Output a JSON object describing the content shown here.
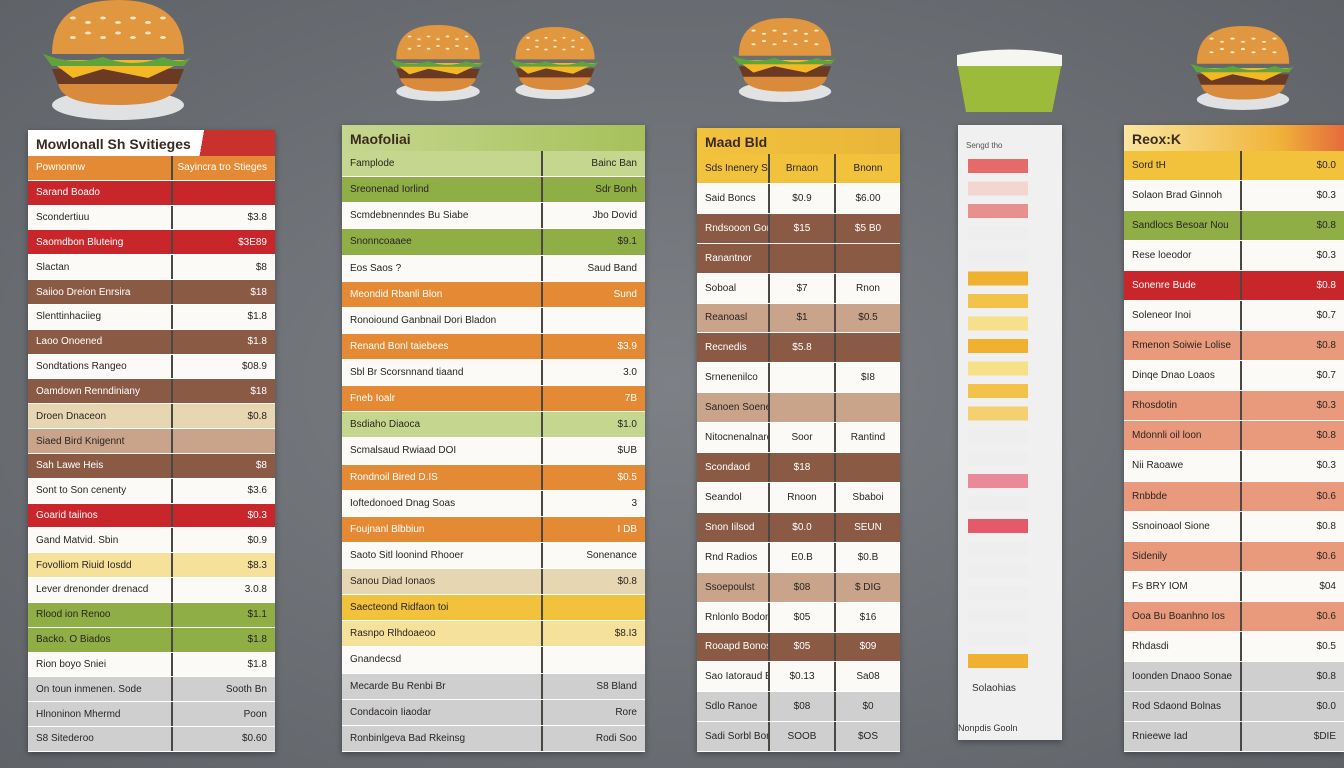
{
  "panels": [
    {
      "title": "Mowlonall Sh Svitieges",
      "rows": [
        [
          "Pownonnw",
          "Sayincra tro Stieges"
        ],
        [
          "Sarand Boado",
          ""
        ],
        [
          "Scondertiuu",
          "$3.8"
        ],
        [
          "Saomdbon Bluteing",
          "$3E89"
        ],
        [
          "Slactan",
          "$8"
        ],
        [
          "Saiioo Dreion Enrsira",
          "$18"
        ],
        [
          "Slenttinhaciieg",
          "$1.8"
        ],
        [
          "Laoo Onoened",
          "$1.8"
        ],
        [
          "Sondtations Rangeo",
          "$08.9"
        ],
        [
          "Oamdown Renndiniany",
          "$18"
        ],
        [
          "Droen Dnaceon",
          "$0.8"
        ],
        [
          "Siaed Bird Knigennt",
          ""
        ],
        [
          "Sah Lawe Heis",
          "$8"
        ],
        [
          "Sont to Son cenenty",
          "$3.6"
        ],
        [
          "Goarid taiinos",
          "$0.3"
        ],
        [
          "Gand Matvid. Sbin",
          "$0.9"
        ],
        [
          "Fovolliom Riuid Iosdd",
          "$8.3"
        ],
        [
          "Lever drenonder drenacd",
          "3.0.8"
        ],
        [
          "Rlood ion Renoo",
          "$1.1"
        ],
        [
          "Backo. O Biados",
          "$1.8"
        ],
        [
          "Rion boyo Sniei",
          "$1.8"
        ],
        [
          "On toun inmenen. Sode",
          "Sooth Bn"
        ],
        [
          "Hlnoninon Mhermd",
          "Poon"
        ],
        [
          "S8 Sitederoo",
          "$0.60"
        ]
      ]
    },
    {
      "title": "Maofoliai",
      "rows": [
        [
          "Famplode",
          "Bainc Ban"
        ],
        [
          "Sreonenad Iorlind",
          "Sdr Bonh"
        ],
        [
          "Scmdebnenndes Bu Siabe",
          "Jbo Dovid"
        ],
        [
          "Snonncoaaee",
          "$9.1"
        ],
        [
          "Eos Saos ?",
          "Saud Band"
        ],
        [
          "Meondid Rbanli Blon",
          "Sund"
        ],
        [
          "Ronoiound Ganbnail Dori Bladon",
          ""
        ],
        [
          "Renand Bonl taiebees",
          "$3.9"
        ],
        [
          "Sbl Br Scorsnnand tiaand",
          "3.0"
        ],
        [
          "Fneb Ioalr",
          "7B"
        ],
        [
          "Bsdiaho Diaoca",
          "$1.0"
        ],
        [
          "Scmalsaud Rwiaad DOI",
          "$UB"
        ],
        [
          "Rondnoil Bired D.IS",
          "$0.5"
        ],
        [
          "Ioftedonoed Dnag Soas",
          "3"
        ],
        [
          "Foujnanl Blbbiun",
          "I DB"
        ],
        [
          "Saoto Sitl loonind Rhooer",
          "Sonenance"
        ],
        [
          "Sanou Diad Ionaos",
          "$0.8"
        ],
        [
          "Saecteond Ridfaon toi",
          ""
        ],
        [
          "Rasnpo Rlhdoaeoo",
          "$8.I3"
        ],
        [
          "Gnandecsd",
          ""
        ],
        [
          "Mecarde Bu Renbi Br",
          "S8 Bland"
        ],
        [
          "Condacoin Iiaodar",
          "Rore"
        ],
        [
          "Ronbinlgeva Bad Rkeinsg",
          "Rodi Soo"
        ]
      ]
    },
    {
      "title": "Maad Bld",
      "rows": [
        [
          "Sds Inenery Srneaeacon",
          "Brnaon",
          "Bnonn"
        ],
        [
          "Said Boncs",
          "$0.9",
          "$6.00"
        ],
        [
          "Rndsooon Gonnneedia",
          "$15",
          "$5 B0"
        ],
        [
          "Ranantnor",
          "",
          ""
        ],
        [
          "Soboal",
          "$7",
          "Rnon"
        ],
        [
          "Reanoasl",
          "$1",
          "$0.5"
        ],
        [
          "Recnedis",
          "$5.8",
          ""
        ],
        [
          "Srnenenilco",
          "",
          "$I8"
        ],
        [
          "Sanoen Soeneb",
          "",
          ""
        ],
        [
          "Nitocnenalnardn Bonelenon",
          "Soor",
          "Rantind"
        ],
        [
          "Scondaod",
          "$18",
          ""
        ],
        [
          "Seandol",
          "Rnoon",
          "Sbaboi"
        ],
        [
          "Snon Iilsod",
          "$0.0",
          "SEUN"
        ],
        [
          "Rnd Radios",
          "E0.B",
          "$0.B"
        ],
        [
          "Ssoepoulst",
          "$08",
          "$ DIG"
        ],
        [
          "Rnlonlo Bodon",
          "$05",
          "$16"
        ],
        [
          "Rooapd Bonos",
          "$05",
          "$09"
        ],
        [
          "Sao Iatoraud Bnonodar",
          "$0.13",
          "Sa08"
        ],
        [
          "Sdlo Ranoe",
          "$08",
          "$0"
        ],
        [
          "Sadi Sorbl Bone Bign",
          "SOOB",
          "$OS"
        ]
      ]
    },
    {
      "title": "Reox:K",
      "rows": [
        [
          "Sord tH",
          "$0.0"
        ],
        [
          "Solaon Brad Ginnoh",
          "$0.3"
        ],
        [
          "Sandlocs Besoar Nou",
          "$0.8"
        ],
        [
          "Rese loeodor",
          "$0.3"
        ],
        [
          "Sonenre Bude",
          "$0.8"
        ],
        [
          "Soleneor Inoi",
          "$0.7"
        ],
        [
          "Rmenon Soiwie Lolise",
          "$0.8"
        ],
        [
          "Dinqe Dnao Loaos",
          "$0.7"
        ],
        [
          "Rhosdotin",
          "$0.3"
        ],
        [
          "Mdonnli oil loon",
          "$0.8"
        ],
        [
          "Nii Raoawe",
          "$0.3"
        ],
        [
          "Rnbbde",
          "$0.6"
        ],
        [
          "Ssnoinoaol Sione",
          "$0.8"
        ],
        [
          "Sidenily",
          "$0.6"
        ],
        [
          "Fs BRY IOM",
          "$04"
        ],
        [
          "Ooa Bu Boanhno Ios",
          "$0.6"
        ],
        [
          "Rhdasdi",
          "$0.5"
        ],
        [
          "Ioonden Dnaoo Sonae",
          "$0.8"
        ],
        [
          "Rod Sdaond Bolnas",
          "$0.0"
        ],
        [
          "Rnieewe Iad",
          "$DIE"
        ]
      ]
    }
  ],
  "side": {
    "title": "Sengd tho",
    "labels": [
      "Solaohias",
      "Nonpdis Gooln"
    ]
  }
}
